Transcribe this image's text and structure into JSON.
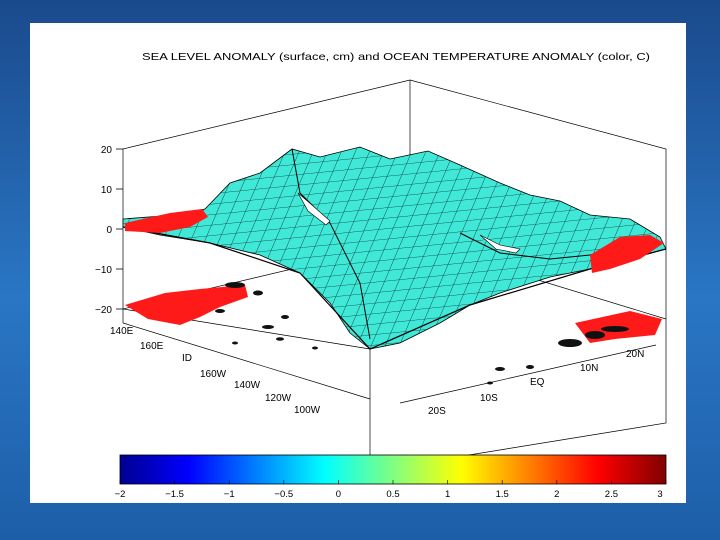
{
  "figure": {
    "title": "SEA LEVEL ANOMALY (surface, cm) and OCEAN TEMPERATURE ANOMALY (color, C)",
    "z_axis": {
      "ticks": [
        "20",
        "10",
        "0",
        "−10",
        "−20"
      ]
    },
    "lon_axis": {
      "ticks": [
        "140E",
        "160E",
        "ID",
        "160W",
        "140W",
        "120W",
        "100W"
      ]
    },
    "lat_axis": {
      "ticks": [
        "20S",
        "10S",
        "EQ",
        "10N",
        "20N"
      ]
    },
    "colorbar": {
      "ticks": [
        "−2",
        "−1.5",
        "−1",
        "−0.5",
        "0",
        "0.5",
        "1",
        "1.5",
        "2",
        "2.5",
        "3"
      ],
      "range": [
        -2,
        3
      ],
      "colormap": [
        "#00008f",
        "#0000ff",
        "#0080ff",
        "#00ffff",
        "#80ff80",
        "#ffff00",
        "#ff8000",
        "#ff0000",
        "#800000"
      ]
    },
    "colors": {
      "surface": "#40e8d8",
      "anomaly_hot": "#ff1a1a",
      "grid": "#000000"
    }
  }
}
